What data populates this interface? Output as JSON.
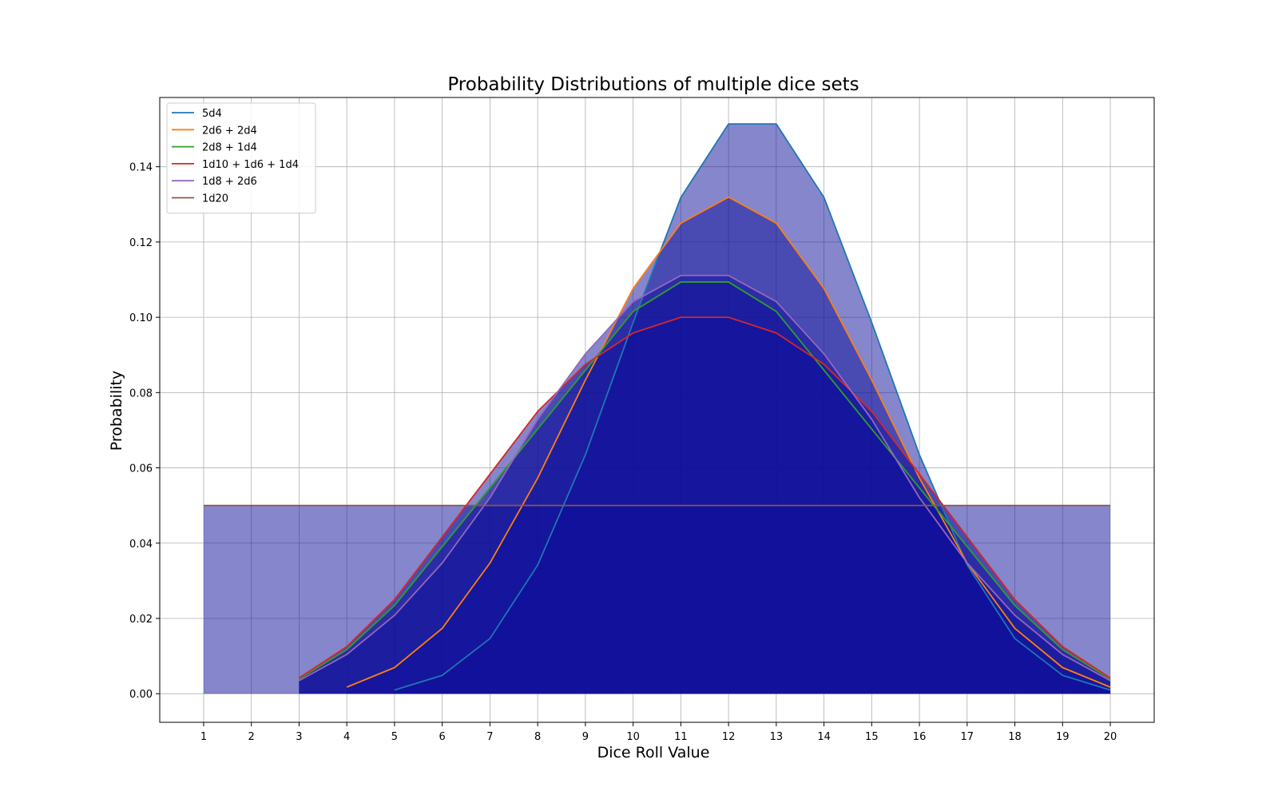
{
  "chart_data": {
    "type": "area",
    "title": "Probability Distributions of multiple dice sets",
    "xlabel": "Dice Roll Value",
    "ylabel": "Probability",
    "xlim": [
      0.08,
      20.92
    ],
    "ylim": [
      -0.0076,
      0.1584
    ],
    "grid": true,
    "legend_position": "top-left",
    "fill_color": "#0d0d99",
    "fill_alpha": 0.5,
    "x_ticks": [
      "1",
      "2",
      "3",
      "4",
      "5",
      "6",
      "7",
      "8",
      "9",
      "10",
      "11",
      "12",
      "13",
      "14",
      "15",
      "16",
      "17",
      "18",
      "19",
      "20"
    ],
    "y_ticks": [
      {
        "value": 0.0,
        "label": "0.00"
      },
      {
        "value": 0.02,
        "label": "0.02"
      },
      {
        "value": 0.04,
        "label": "0.04"
      },
      {
        "value": 0.06,
        "label": "0.06"
      },
      {
        "value": 0.08,
        "label": "0.08"
      },
      {
        "value": 0.1,
        "label": "0.10"
      },
      {
        "value": 0.12,
        "label": "0.12"
      },
      {
        "value": 0.14,
        "label": "0.14"
      }
    ],
    "series": [
      {
        "name": "5d4",
        "color": "#1f77b4",
        "x": [
          5,
          6,
          7,
          8,
          9,
          10,
          11,
          12,
          13,
          14,
          15,
          16,
          17,
          18,
          19,
          20
        ],
        "values": [
          0.00098,
          0.00488,
          0.01465,
          0.03418,
          0.06348,
          0.09863,
          0.13184,
          0.15137,
          0.15137,
          0.13184,
          0.09863,
          0.06348,
          0.03418,
          0.01465,
          0.00488,
          0.00098
        ]
      },
      {
        "name": "2d6 + 2d4",
        "color": "#ff7f0e",
        "x": [
          4,
          5,
          6,
          7,
          8,
          9,
          10,
          11,
          12,
          13,
          14,
          15,
          16,
          17,
          18,
          19,
          20
        ],
        "values": [
          0.00174,
          0.00694,
          0.01736,
          0.03472,
          0.05729,
          0.08333,
          0.10764,
          0.125,
          0.13194,
          0.125,
          0.10764,
          0.08333,
          0.05729,
          0.03472,
          0.01736,
          0.00694,
          0.00174
        ]
      },
      {
        "name": "2d8 + 1d4",
        "color": "#2ca02c",
        "x": [
          3,
          4,
          5,
          6,
          7,
          8,
          9,
          10,
          11,
          12,
          13,
          14,
          15,
          16,
          17,
          18,
          19,
          20
        ],
        "values": [
          0.00391,
          0.01172,
          0.02344,
          0.03906,
          0.05469,
          0.07031,
          0.08594,
          0.10156,
          0.10938,
          0.10938,
          0.10156,
          0.08594,
          0.07031,
          0.05469,
          0.03906,
          0.02344,
          0.01172,
          0.00391
        ]
      },
      {
        "name": "1d10 + 1d6 + 1d4",
        "color": "#d62728",
        "x": [
          3,
          4,
          5,
          6,
          7,
          8,
          9,
          10,
          11,
          12,
          13,
          14,
          15,
          16,
          17,
          18,
          19,
          20
        ],
        "values": [
          0.00417,
          0.0125,
          0.025,
          0.04167,
          0.05833,
          0.075,
          0.0875,
          0.09583,
          0.1,
          0.1,
          0.09583,
          0.0875,
          0.075,
          0.05833,
          0.04167,
          0.025,
          0.0125,
          0.00417
        ]
      },
      {
        "name": "1d8 + 2d6",
        "color": "#9467bd",
        "x": [
          3,
          4,
          5,
          6,
          7,
          8,
          9,
          10,
          11,
          12,
          13,
          14,
          15,
          16,
          17,
          18,
          19,
          20
        ],
        "values": [
          0.00347,
          0.01042,
          0.02083,
          0.03472,
          0.05208,
          0.07292,
          0.09028,
          0.10417,
          0.11111,
          0.11111,
          0.10417,
          0.09028,
          0.07292,
          0.05208,
          0.03472,
          0.02083,
          0.01042,
          0.00347
        ]
      },
      {
        "name": "1d20",
        "color": "#8c564b",
        "x": [
          1,
          2,
          3,
          4,
          5,
          6,
          7,
          8,
          9,
          10,
          11,
          12,
          13,
          14,
          15,
          16,
          17,
          18,
          19,
          20
        ],
        "values": [
          0.05,
          0.05,
          0.05,
          0.05,
          0.05,
          0.05,
          0.05,
          0.05,
          0.05,
          0.05,
          0.05,
          0.05,
          0.05,
          0.05,
          0.05,
          0.05,
          0.05,
          0.05,
          0.05,
          0.05
        ]
      }
    ]
  }
}
